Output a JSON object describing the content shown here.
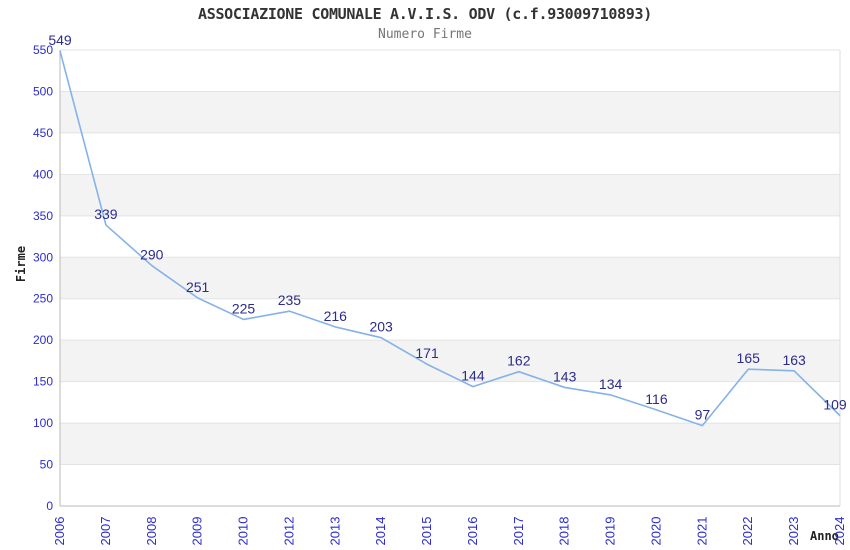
{
  "chart_data": {
    "type": "line",
    "title": "ASSOCIAZIONE COMUNALE A.V.I.S. ODV (c.f.93009710893)",
    "subtitle": "Numero Firme",
    "xlabel": "Anno",
    "ylabel": "Firme",
    "categories": [
      "2006",
      "2007",
      "2008",
      "2009",
      "2010",
      "2012",
      "2013",
      "2014",
      "2015",
      "2016",
      "2017",
      "2018",
      "2019",
      "2020",
      "2021",
      "2022",
      "2023",
      "2024"
    ],
    "values": [
      549,
      339,
      290,
      251,
      225,
      235,
      216,
      203,
      171,
      144,
      162,
      143,
      134,
      116,
      97,
      165,
      163,
      109
    ],
    "ylim": [
      0,
      550
    ],
    "ytick_step": 50,
    "yticks": [
      0,
      50,
      100,
      150,
      200,
      250,
      300,
      350,
      400,
      450,
      500,
      550
    ],
    "grid": true,
    "legend": "none",
    "band_pattern": "alternating horizontal 50-unit bands, gray on 500-450, 400-350, 300-250, 200-150, 100-50",
    "data_labels_shown": true,
    "colors": {
      "line": "#85b2e8",
      "data_label": "#2c2c8c",
      "tick_label": "#2b2bd2",
      "band": "#f3f3f3",
      "gridline": "#e3e3e3",
      "axis_line": "#b9b9b9",
      "plot_border": "#dcdcdc",
      "title": "#333333",
      "subtitle": "#757575",
      "background": "#ffffff"
    }
  }
}
